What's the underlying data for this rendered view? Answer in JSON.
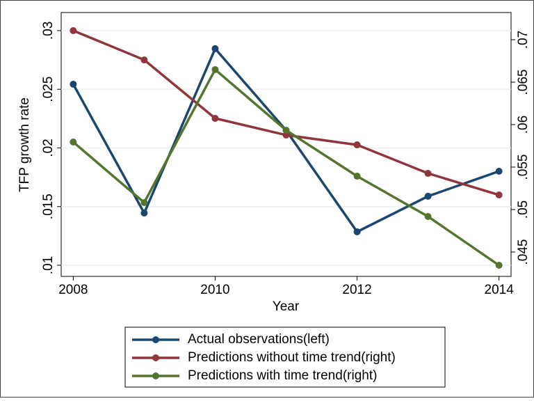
{
  "chart_data": {
    "type": "line",
    "x_label": "Year",
    "y_label": "TFP growth rate",
    "x": [
      2008,
      2009,
      2010,
      2011,
      2012,
      2013,
      2014
    ],
    "xlim": [
      2007.83,
      2014.17
    ],
    "xticks": [
      2008,
      2010,
      2012,
      2014
    ],
    "ylim": [
      0.00905,
      0.03154
    ],
    "yticks": [
      {
        "value": 0.01,
        "label": ".01"
      },
      {
        "value": 0.015,
        "label": ".015"
      },
      {
        "value": 0.02,
        "label": ".02"
      },
      {
        "value": 0.025,
        "label": ".025"
      },
      {
        "value": 0.03,
        "label": ".03"
      }
    ],
    "y2lim": [
      0.04213,
      0.0732
    ],
    "y2ticks": [
      {
        "value": 0.045,
        "label": ".045"
      },
      {
        "value": 0.05,
        "label": ".05"
      },
      {
        "value": 0.055,
        "label": ".055"
      },
      {
        "value": 0.06,
        "label": ".06"
      },
      {
        "value": 0.065,
        "label": ".065"
      },
      {
        "value": 0.07,
        "label": ".07"
      }
    ],
    "grid": true,
    "series": [
      {
        "name": "Actual observations(left)",
        "color": "#1a476f",
        "values": [
          0.02543,
          0.01445,
          0.02846,
          0.0215,
          0.01285,
          0.01588,
          0.01801
        ]
      },
      {
        "name": "Predictions without time trend(right)",
        "color": "#90353b",
        "axis": "y2",
        "values": [
          0.07107,
          0.06762,
          0.06074,
          0.05877,
          0.05762,
          0.05426,
          0.05172
        ]
      },
      {
        "name": "Predictions with time trend(right)",
        "color": "#55752f",
        "axis": "y2",
        "values": [
          0.05795,
          0.05082,
          0.06648,
          0.05934,
          0.05393,
          0.04918,
          0.04344
        ]
      }
    ]
  }
}
